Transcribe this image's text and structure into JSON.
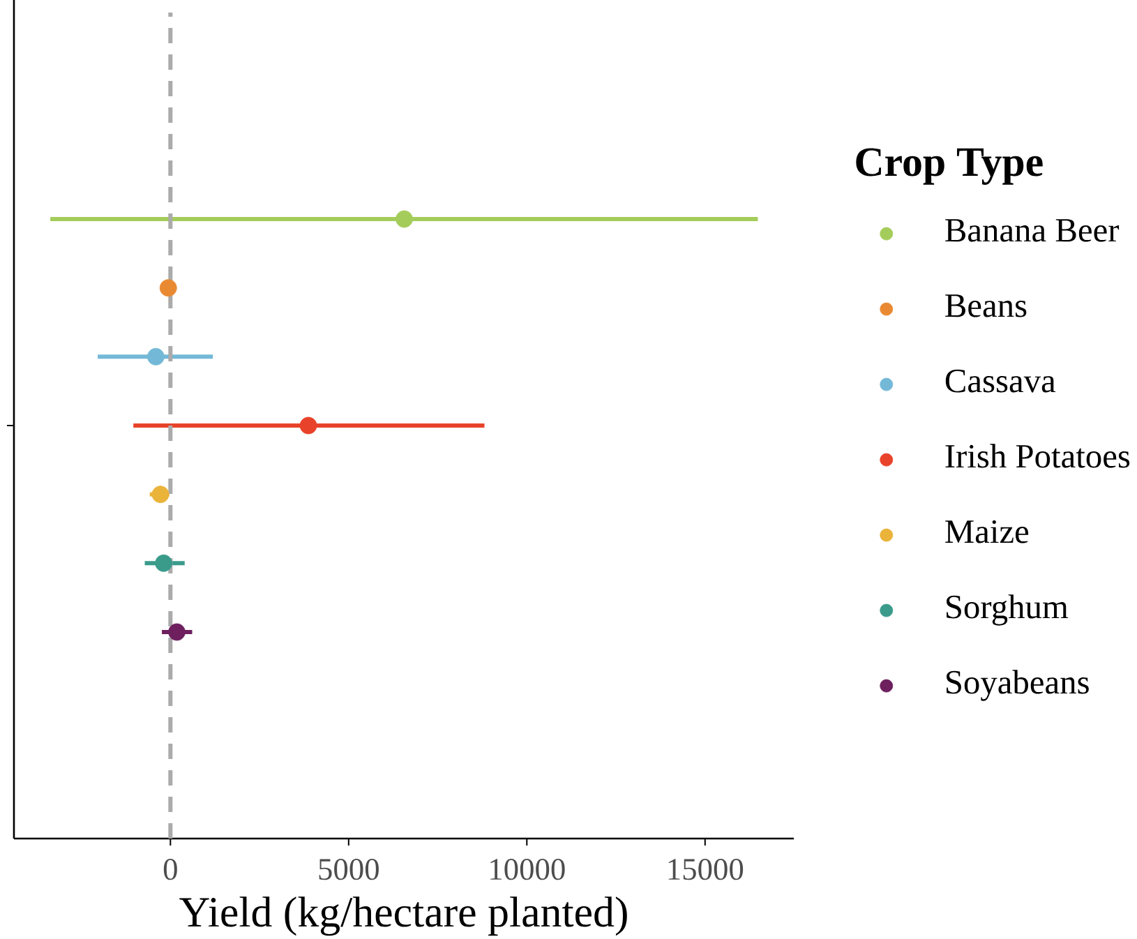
{
  "chart_data": {
    "type": "scatter",
    "orientation": "horizontal",
    "categories": [
      null
    ],
    "xlabel": "Yield (kg/hectare planted)",
    "legend_title": "Crop Type",
    "legend": "right",
    "marker": "circle",
    "tick_labels": "x",
    "xlim": [
      -4390,
      17490
    ],
    "xticks": [
      0,
      5000,
      10000,
      15000
    ],
    "ref_lines": [
      {
        "axis": "x",
        "value": 0,
        "color": "#ababab",
        "line_style": "dashed"
      }
    ],
    "series": [
      {
        "name": "Banana Beer",
        "color": "#a4cc5b",
        "values": [
          6560
        ],
        "errors": [
          [
            -3370,
            16480
          ]
        ]
      },
      {
        "name": "Beans",
        "color": "#e98a33",
        "values": [
          -60
        ],
        "errors": [
          null
        ]
      },
      {
        "name": "Cassava",
        "color": "#73b9d7",
        "values": [
          -410
        ],
        "errors": [
          [
            -2040,
            1190
          ]
        ]
      },
      {
        "name": "Irish Potatoes",
        "color": "#e8432a",
        "values": [
          3870
        ],
        "errors": [
          [
            -1040,
            8810
          ]
        ]
      },
      {
        "name": "Maize",
        "color": "#eab33a",
        "values": [
          -280
        ],
        "errors": [
          [
            -580,
            -30
          ]
        ]
      },
      {
        "name": "Sorghum",
        "color": "#3a9b8b",
        "values": [
          -190
        ],
        "errors": [
          [
            -720,
            400
          ]
        ]
      },
      {
        "name": "Soyabeans",
        "color": "#6d1f5e",
        "values": [
          180
        ],
        "errors": [
          [
            -240,
            610
          ]
        ]
      }
    ]
  }
}
